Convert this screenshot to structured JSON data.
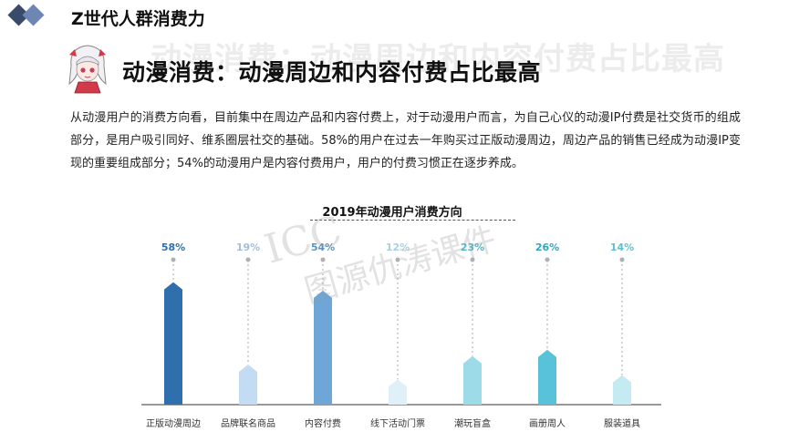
{
  "header": {
    "title": "Z世代人群消费力",
    "logo_colors": [
      "#3a4a6b",
      "#6d86b3"
    ]
  },
  "watermark_title": "动漫消费：动漫周边和内容付费占比最高",
  "section": {
    "title": "动漫消费：动漫周边和内容付费占比最高"
  },
  "body_text": "从动漫用户的消费方向看，目前集中在周边产品和内容付费上，对于动漫用户而言，为自己心仪的动漫IP付费是社交货币的组成部分，是用户吸引同好、维系圈层社交的基础。58%的用户在过去一年购买过正版动漫周边，周边产品的销售已经成为动漫IP变现的重要组成部分；54%的动漫用户是内容付费用户，用户的付费习惯正在逐步养成。",
  "overlay_watermark": {
    "line1": "ICC",
    "line2": "图源仇涛课件"
  },
  "chart_data": {
    "type": "bar",
    "title": "2019年动漫用户消费方向",
    "categories": [
      "正版动漫周边",
      "品牌联名商品",
      "内容付费",
      "线下活动门票",
      "潮玩盲盒",
      "画册周人",
      "服装道具"
    ],
    "values": [
      58,
      19,
      54,
      12,
      23,
      26,
      14
    ],
    "value_labels": [
      "58%",
      "19%",
      "54%",
      "12%",
      "23%",
      "26%",
      "14%"
    ],
    "unit": "%",
    "ylim": [
      0,
      60
    ],
    "grid": false,
    "legend": "none",
    "colors": [
      "#2f6fae",
      "#c3dcf3",
      "#6fa6d8",
      "#dff0f8",
      "#9ddbe8",
      "#58c2da",
      "#c4eaf2"
    ],
    "label_colors": [
      "#2f6fae",
      "#9fbfe0",
      "#5b93c9",
      "#aacfe3",
      "#4fb6cc",
      "#2ea6c4",
      "#5cc0d3"
    ]
  }
}
